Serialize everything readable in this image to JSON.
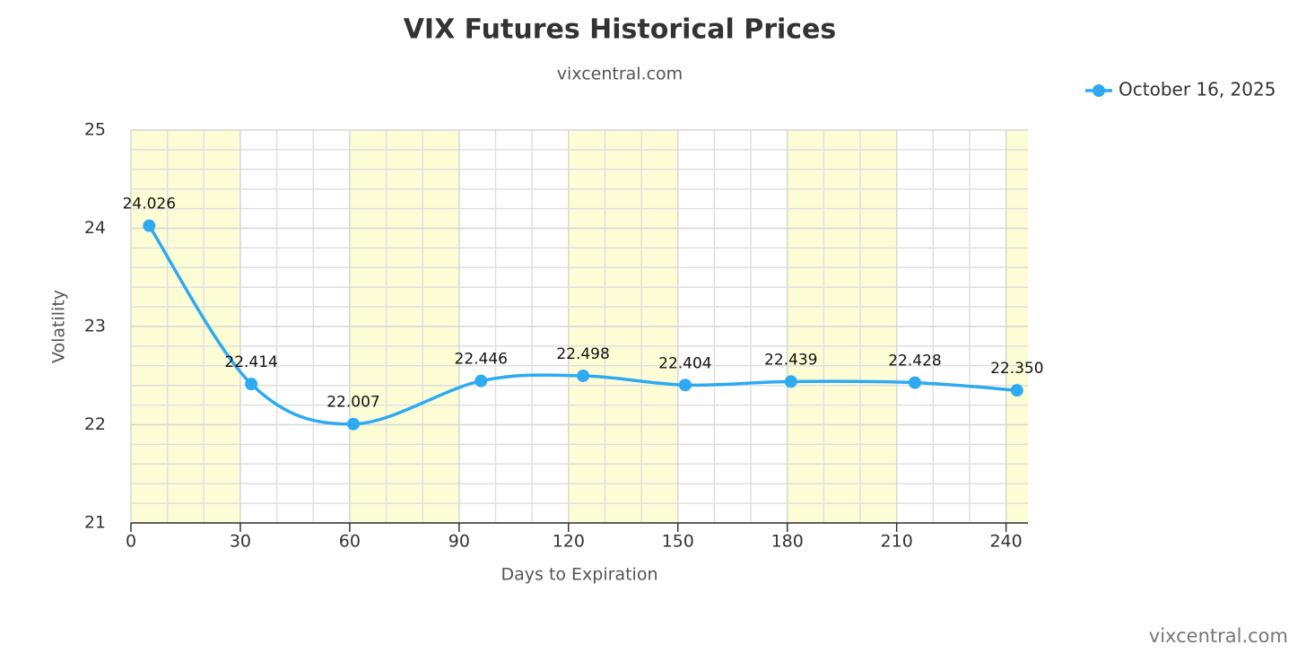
{
  "chart_data": {
    "type": "line",
    "title": "VIX Futures Historical Prices",
    "subtitle": "vixcentral.com",
    "credits": "vixcentral.com",
    "x_label": "Days to Expiration",
    "y_label": "Volatility",
    "x": [
      5,
      33,
      61,
      96,
      124,
      152,
      181,
      215,
      243
    ],
    "series": [
      {
        "name": "October 16, 2025",
        "color": "#2eaaf2",
        "values": [
          24.026,
          22.414,
          22.007,
          22.446,
          22.498,
          22.404,
          22.439,
          22.428,
          22.35
        ],
        "value_labels": [
          "24.026",
          "22.414",
          "22.007",
          "22.446",
          "22.498",
          "22.404",
          "22.439",
          "22.428",
          "22.350"
        ]
      }
    ],
    "xlim": [
      0,
      246
    ],
    "xticks": [
      0,
      30,
      60,
      90,
      120,
      150,
      180,
      210,
      240
    ],
    "ylim": [
      21,
      25
    ],
    "yticks": [
      21,
      22,
      23,
      24,
      25
    ],
    "grid": true,
    "x_minor_divisions": 3,
    "y_minor_divisions": 5,
    "band_color": "#fdfdd5",
    "legend": "top-right",
    "smooth": true
  }
}
